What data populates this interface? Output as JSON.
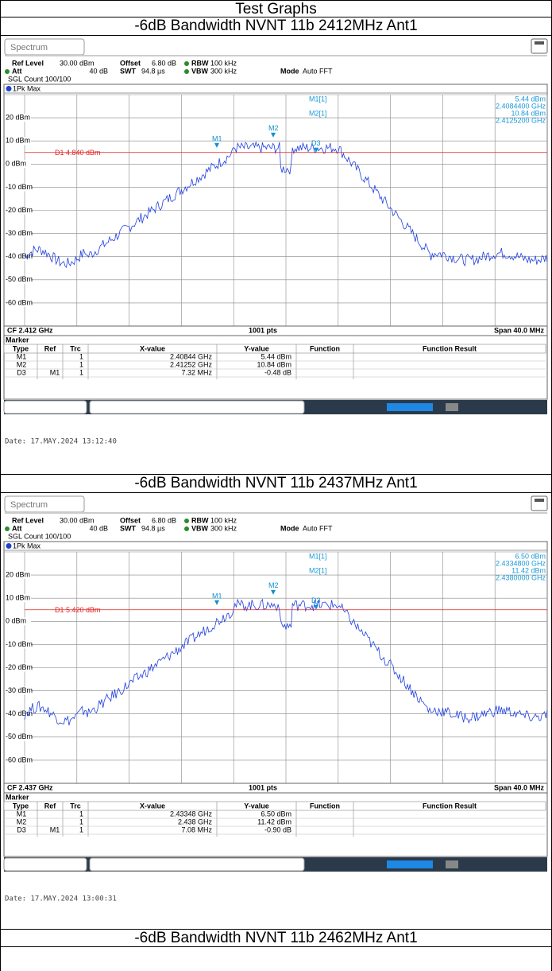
{
  "header": {
    "title": "Test Graphs"
  },
  "sections": [
    {
      "title": "-6dB Bandwidth NVNT 11b 2412MHz Ant1",
      "screen": {
        "tab": "Spectrum",
        "ref_level_label": "Ref Level",
        "ref_level": "30.00 dBm",
        "offset_label": "Offset",
        "offset": "6.80 dB",
        "rbw_label": "RBW",
        "rbw": "100 kHz",
        "att_label": "Att",
        "att": "40 dB",
        "swt_label": "SWT",
        "swt": "94.8 µs",
        "vbw_label": "VBW",
        "vbw": "300 kHz",
        "mode_label": "Mode",
        "mode": "Auto FFT",
        "count": "SGL Count 100/100",
        "trace": "1Pk Max",
        "levels": [
          "20 dBm",
          "10 dBm",
          "0 dBm",
          "-10 dBm",
          "-20 dBm",
          "-30 dBm",
          "-40 dBm",
          "-50 dBm",
          "-60 dBm"
        ],
        "display_line": "D1 4.840 dBm",
        "readout": [
          {
            "name": "M1[1]",
            "level": "5.44 dBm",
            "freq": "2.4084400 GHz"
          },
          {
            "name": "M2[1]",
            "level": "10.84 dBm",
            "freq": "2.4125200 GHz"
          }
        ],
        "marker_tags": [
          "M1",
          "M2",
          "D3"
        ],
        "center": "CF 2.412 GHz",
        "points": "1001 pts",
        "span": "Span 40.0 MHz",
        "marker_title": "Marker",
        "columns": [
          "Type",
          "Ref",
          "Trc",
          "X-value",
          "Y-value",
          "Function",
          "Function Result"
        ],
        "rows": [
          {
            "type": "M1",
            "trc": "1",
            "x": "2.40844 GHz",
            "y": "5.44 dBm"
          },
          {
            "type": "M2",
            "trc": "1",
            "x": "2.41252 GHz",
            "y": "10.84 dBm"
          },
          {
            "type": "D3",
            "ref": "M1",
            "trc": "1",
            "x": "7.32 MHz",
            "y": "-0.48 dB"
          }
        ]
      },
      "date": "Date: 17.MAY.2024  13:12:40"
    },
    {
      "title": "-6dB Bandwidth NVNT 11b 2437MHz Ant1",
      "screen": {
        "tab": "Spectrum",
        "ref_level_label": "Ref Level",
        "ref_level": "30.00 dBm",
        "offset_label": "Offset",
        "offset": "6.80 dB",
        "rbw_label": "RBW",
        "rbw": "100 kHz",
        "att_label": "Att",
        "att": "40 dB",
        "swt_label": "SWT",
        "swt": "94.8 µs",
        "vbw_label": "VBW",
        "vbw": "300 kHz",
        "mode_label": "Mode",
        "mode": "Auto FFT",
        "count": "SGL Count 100/100",
        "trace": "1Pk Max",
        "levels": [
          "20 dBm",
          "10 dBm",
          "0 dBm",
          "-10 dBm",
          "-20 dBm",
          "-30 dBm",
          "-40 dBm",
          "-50 dBm",
          "-60 dBm"
        ],
        "display_line": "D1 5.420 dBm",
        "readout": [
          {
            "name": "M1[1]",
            "level": "6.50 dBm",
            "freq": "2.4334800 GHz"
          },
          {
            "name": "M2[1]",
            "level": "11.42 dBm",
            "freq": "2.4380000 GHz"
          }
        ],
        "marker_tags": [
          "M1",
          "M2",
          "D3"
        ],
        "center": "CF 2.437 GHz",
        "points": "1001 pts",
        "span": "Span 40.0 MHz",
        "marker_title": "Marker",
        "columns": [
          "Type",
          "Ref",
          "Trc",
          "X-value",
          "Y-value",
          "Function",
          "Function Result"
        ],
        "rows": [
          {
            "type": "M1",
            "trc": "1",
            "x": "2.43348 GHz",
            "y": "6.50 dBm"
          },
          {
            "type": "M2",
            "trc": "1",
            "x": "2.438 GHz",
            "y": "11.42 dBm"
          },
          {
            "type": "D3",
            "ref": "M1",
            "trc": "1",
            "x": "7.08 MHz",
            "y": "-0.90 dB"
          }
        ]
      },
      "date": "Date: 17.MAY.2024  13:00:31"
    },
    {
      "title": "-6dB Bandwidth NVNT 11b 2462MHz Ant1"
    }
  ]
}
